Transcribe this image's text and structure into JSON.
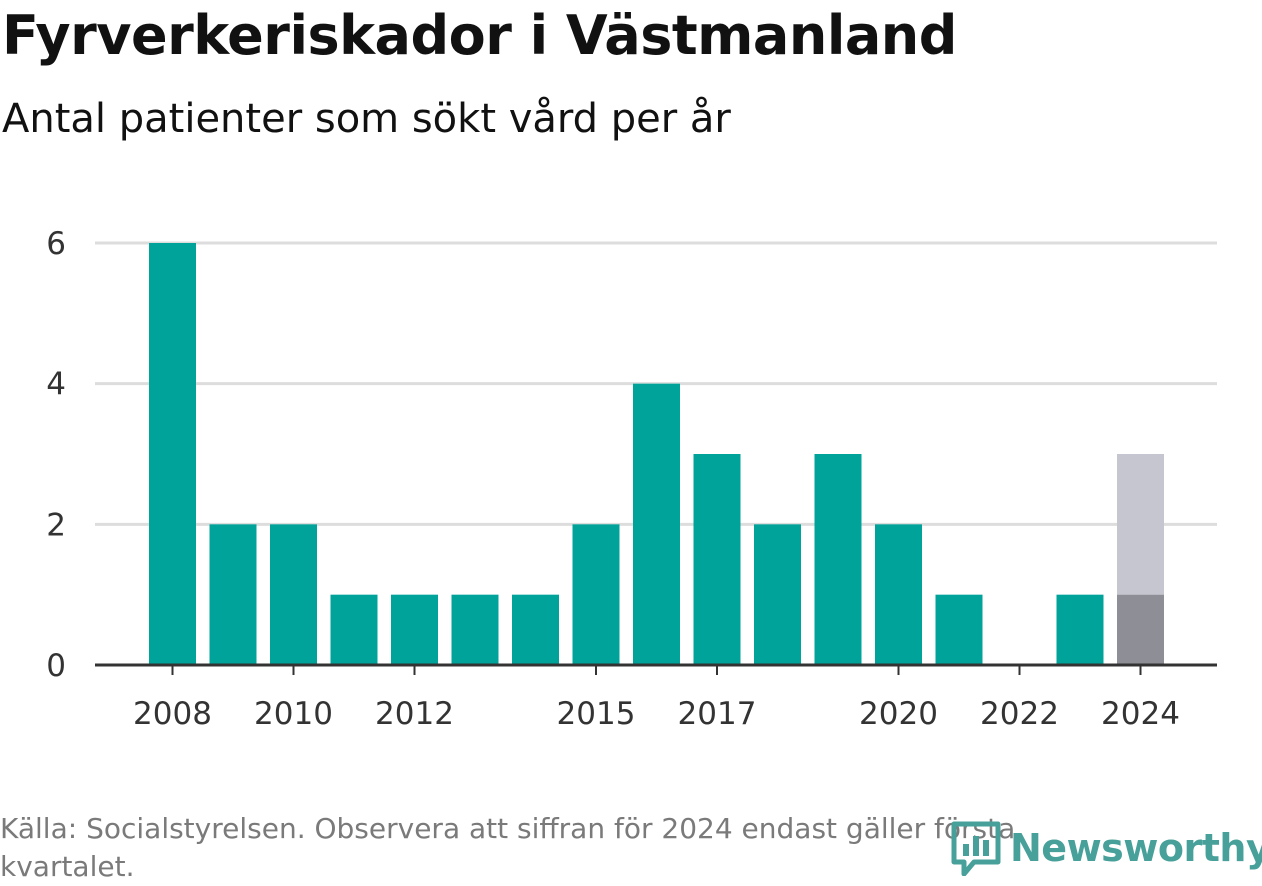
{
  "chart_data": {
    "type": "bar",
    "title": "Fyrverkeriskador i Västmanland",
    "subtitle": "Antal patienter som sökt vård per år",
    "categories": [
      2008,
      2009,
      2010,
      2011,
      2012,
      2013,
      2014,
      2015,
      2016,
      2017,
      2018,
      2019,
      2020,
      2021,
      2022,
      2023,
      2024
    ],
    "values": [
      6,
      2,
      2,
      1,
      1,
      1,
      1,
      2,
      4,
      3,
      2,
      3,
      2,
      1,
      0,
      1,
      1
    ],
    "projected_total_2024": 3,
    "x_tick_labels": [
      "2008",
      "2010",
      "2012",
      "2015",
      "2017",
      "2020",
      "2022",
      "2024"
    ],
    "y_ticks": [
      0,
      2,
      4,
      6
    ],
    "ylim": [
      0,
      6
    ],
    "grid": true,
    "colors": {
      "bar": "#00a39a",
      "bar_partial_year": "#8e8e96",
      "bar_projected": "#c6c6d0",
      "grid": "#dddddd",
      "axis": "#333333"
    }
  },
  "footer": {
    "source": "Källa: Socialstyrelsen. Observera att siffran för 2024 endast gäller första kvartalet."
  },
  "logo": {
    "text": "Newsworthy",
    "icon": "newsworthy-chart-icon",
    "color": "#47a09a"
  }
}
